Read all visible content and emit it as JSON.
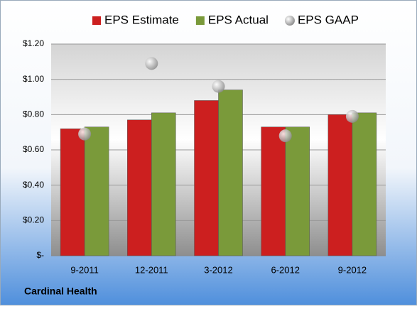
{
  "chart_data": {
    "type": "bar",
    "categories": [
      "9-2011",
      "12-2011",
      "3-2012",
      "6-2012",
      "9-2012"
    ],
    "series": [
      {
        "name": "EPS Estimate",
        "color": "#cc1f1f",
        "type": "bar",
        "values": [
          0.72,
          0.77,
          0.88,
          0.73,
          0.8
        ]
      },
      {
        "name": "EPS Actual",
        "color": "#7a9a3a",
        "type": "bar",
        "values": [
          0.73,
          0.81,
          0.94,
          0.73,
          0.81
        ]
      },
      {
        "name": "EPS GAAP",
        "color": "#b0b0b0",
        "type": "marker",
        "values": [
          0.69,
          1.09,
          0.96,
          0.68,
          0.79
        ]
      }
    ],
    "ylim": [
      0,
      1.2
    ],
    "yticks": [
      {
        "value": 0,
        "label": "$-"
      },
      {
        "value": 0.2,
        "label": "$0.20"
      },
      {
        "value": 0.4,
        "label": "$0.40"
      },
      {
        "value": 0.6,
        "label": "$0.60"
      },
      {
        "value": 0.8,
        "label": "$0.80"
      },
      {
        "value": 1.0,
        "label": "$1.00"
      },
      {
        "value": 1.2,
        "label": "$1.20"
      }
    ],
    "grid": true,
    "legend": "top",
    "annotation": "Cardinal Health"
  }
}
